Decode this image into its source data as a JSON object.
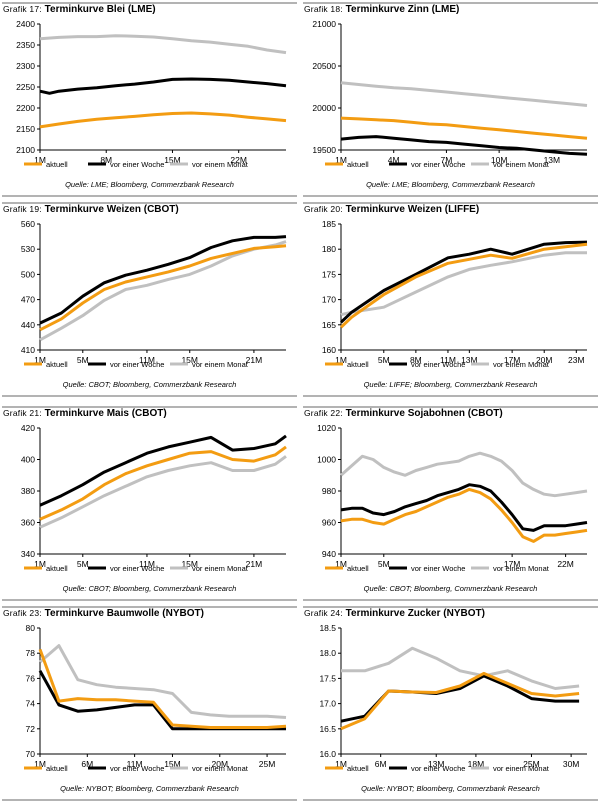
{
  "series_colors": {
    "aktuell": "#f39c12",
    "vor einer Woche": "#000000",
    "vor einem Monat": "#c0c0c0"
  },
  "legend": [
    "aktuell",
    "vor einer Woche",
    "vor einem Monat"
  ],
  "chart_data": [
    {
      "id": "g17",
      "type": "line",
      "figure_label": "Grafik 17:",
      "title": "Terminkurve Blei (LME)",
      "source": "Quelle: LME; Bloomberg, Commerzbank Research",
      "ylim": [
        2100,
        2400
      ],
      "yticks": [
        2100,
        2150,
        2200,
        2250,
        2300,
        2350,
        2400
      ],
      "ticklabels": [
        "1M",
        "8M",
        "15M",
        "22M"
      ],
      "tick_positions": [
        1,
        8,
        15,
        22
      ],
      "xlim": [
        1,
        27
      ],
      "series": [
        {
          "name": "aktuell",
          "x": [
            1,
            3,
            5,
            7,
            9,
            11,
            13,
            15,
            17,
            19,
            21,
            23,
            25,
            27
          ],
          "values": [
            2155,
            2162,
            2168,
            2173,
            2177,
            2180,
            2184,
            2187,
            2188,
            2186,
            2183,
            2178,
            2174,
            2170
          ]
        },
        {
          "name": "vor einer Woche",
          "x": [
            1,
            2,
            3,
            5,
            7,
            9,
            11,
            13,
            15,
            17,
            19,
            21,
            23,
            25,
            27
          ],
          "values": [
            2240,
            2235,
            2240,
            2245,
            2248,
            2253,
            2257,
            2262,
            2268,
            2269,
            2268,
            2266,
            2262,
            2258,
            2253
          ]
        },
        {
          "name": "vor einem Monat",
          "x": [
            1,
            3,
            5,
            7,
            9,
            11,
            13,
            15,
            17,
            19,
            21,
            23,
            25,
            27
          ],
          "values": [
            2365,
            2368,
            2370,
            2370,
            2372,
            2371,
            2369,
            2365,
            2360,
            2357,
            2352,
            2347,
            2338,
            2332
          ]
        }
      ]
    },
    {
      "id": "g18",
      "type": "line",
      "figure_label": "Grafik 18:",
      "title": "Terminkurve Zinn (LME)",
      "source": "Quelle: LME; Bloomberg, Commerzbank Research",
      "ylim": [
        19500,
        21000
      ],
      "yticks": [
        19500,
        20000,
        20500,
        21000
      ],
      "ticklabels": [
        "1M",
        "4M",
        "7M",
        "10M",
        "13M"
      ],
      "tick_positions": [
        1,
        4,
        7,
        10,
        13
      ],
      "xlim": [
        1,
        15
      ],
      "series": [
        {
          "name": "aktuell",
          "x": [
            1,
            2,
            3,
            4,
            5,
            6,
            7,
            8,
            9,
            10,
            11,
            12,
            13,
            14,
            15
          ],
          "values": [
            19880,
            19870,
            19860,
            19850,
            19830,
            19810,
            19800,
            19780,
            19760,
            19740,
            19720,
            19700,
            19680,
            19660,
            19640
          ]
        },
        {
          "name": "vor einer Woche",
          "x": [
            1,
            2,
            3,
            4,
            5,
            6,
            7,
            8,
            9,
            10,
            11,
            12,
            13,
            14,
            15
          ],
          "values": [
            19630,
            19650,
            19660,
            19640,
            19620,
            19600,
            19590,
            19570,
            19550,
            19530,
            19520,
            19500,
            19480,
            19460,
            19450
          ]
        },
        {
          "name": "vor einem Monat",
          "x": [
            1,
            2,
            3,
            4,
            5,
            6,
            7,
            8,
            9,
            10,
            11,
            12,
            13,
            14,
            15
          ],
          "values": [
            20300,
            20280,
            20260,
            20240,
            20230,
            20210,
            20190,
            20170,
            20150,
            20130,
            20110,
            20090,
            20070,
            20050,
            20030
          ]
        }
      ]
    },
    {
      "id": "g19",
      "type": "line",
      "figure_label": "Grafik 19:",
      "title": "Terminkurve Weizen (CBOT)",
      "source": "Quelle: CBOT; Bloomberg, Commerzbank Research",
      "ylim": [
        410,
        560
      ],
      "yticks": [
        410,
        440,
        470,
        500,
        530,
        560
      ],
      "ticklabels": [
        "1M",
        "5M",
        "11M",
        "15M",
        "21M"
      ],
      "tick_positions": [
        1,
        5,
        11,
        15,
        21
      ],
      "xlim": [
        1,
        24
      ],
      "series": [
        {
          "name": "aktuell",
          "x": [
            1,
            3,
            5,
            7,
            9,
            11,
            13,
            15,
            17,
            19,
            21,
            23,
            24
          ],
          "values": [
            434,
            447,
            466,
            482,
            491,
            497,
            503,
            510,
            519,
            525,
            531,
            533,
            534
          ]
        },
        {
          "name": "vor einer Woche",
          "x": [
            1,
            3,
            5,
            7,
            9,
            11,
            13,
            15,
            17,
            19,
            21,
            23,
            24
          ],
          "values": [
            442,
            454,
            474,
            490,
            499,
            505,
            512,
            520,
            532,
            540,
            544,
            544,
            545
          ]
        },
        {
          "name": "vor einem Monat",
          "x": [
            1,
            3,
            5,
            7,
            9,
            11,
            13,
            15,
            17,
            19,
            21,
            23,
            24
          ],
          "values": [
            422,
            436,
            451,
            469,
            482,
            487,
            494,
            500,
            510,
            522,
            530,
            535,
            539
          ]
        }
      ]
    },
    {
      "id": "g20",
      "type": "line",
      "figure_label": "Grafik 20:",
      "title": "Terminkurve Weizen (LIFFE)",
      "source": "Quelle: LIFFE; Bloomberg, Commerzbank Research",
      "ylim": [
        160,
        185
      ],
      "yticks": [
        160,
        165,
        170,
        175,
        180,
        185
      ],
      "ticklabels": [
        "1M",
        "5M",
        "8M",
        "11M",
        "13M",
        "17M",
        "20M",
        "23M"
      ],
      "tick_positions": [
        1,
        5,
        8,
        11,
        13,
        17,
        20,
        23
      ],
      "xlim": [
        1,
        24
      ],
      "series": [
        {
          "name": "aktuell",
          "x": [
            1,
            2,
            5,
            8,
            11,
            13,
            15,
            17,
            20,
            22,
            24
          ],
          "values": [
            164.5,
            166.5,
            171,
            174.5,
            177.2,
            178,
            178.8,
            178.2,
            180,
            180.5,
            181
          ]
        },
        {
          "name": "vor einer Woche",
          "x": [
            1,
            2,
            5,
            8,
            11,
            13,
            15,
            17,
            20,
            22,
            24
          ],
          "values": [
            165.5,
            167.5,
            171.8,
            175,
            178.3,
            179,
            180,
            179,
            181,
            181.3,
            181.4
          ]
        },
        {
          "name": "vor einem Monat",
          "x": [
            1,
            2,
            5,
            8,
            11,
            13,
            15,
            17,
            20,
            22,
            24
          ],
          "values": [
            167,
            167.5,
            168.5,
            171.5,
            174.5,
            176,
            176.8,
            177.5,
            178.8,
            179.3,
            179.3
          ]
        }
      ]
    },
    {
      "id": "g21",
      "type": "line",
      "figure_label": "Grafik 21:",
      "title": "Terminkurve Mais (CBOT)",
      "source": "Quelle: CBOT; Bloomberg, Commerzbank Research",
      "ylim": [
        340,
        420
      ],
      "yticks": [
        340,
        360,
        380,
        400,
        420
      ],
      "ticklabels": [
        "1M",
        "5M",
        "11M",
        "15M",
        "21M"
      ],
      "tick_positions": [
        1,
        5,
        11,
        15,
        21
      ],
      "xlim": [
        1,
        24
      ],
      "series": [
        {
          "name": "aktuell",
          "x": [
            1,
            3,
            5,
            7,
            9,
            11,
            13,
            15,
            17,
            19,
            21,
            23,
            24
          ],
          "values": [
            362,
            368,
            375,
            384,
            391,
            396,
            400,
            404,
            405,
            400,
            399,
            403,
            408
          ]
        },
        {
          "name": "vor einer Woche",
          "x": [
            1,
            3,
            5,
            7,
            9,
            11,
            13,
            15,
            17,
            19,
            21,
            23,
            24
          ],
          "values": [
            371,
            377,
            384,
            392,
            398,
            404,
            408,
            411,
            414,
            406,
            407,
            410,
            415
          ]
        },
        {
          "name": "vor einem Monat",
          "x": [
            1,
            3,
            5,
            7,
            9,
            11,
            13,
            15,
            17,
            19,
            21,
            23,
            24
          ],
          "values": [
            357,
            363,
            370,
            377,
            383,
            389,
            393,
            396,
            398,
            393,
            393,
            397,
            402
          ]
        }
      ]
    },
    {
      "id": "g22",
      "type": "line",
      "figure_label": "Grafik 22:",
      "title": "Terminkurve Sojabohnen (CBOT)",
      "source": "Quelle: CBOT; Bloomberg, Commerzbank Research",
      "ylim": [
        940,
        1020
      ],
      "yticks": [
        940,
        960,
        980,
        1000,
        1020
      ],
      "ticklabels": [
        "1M",
        "5M",
        "17M",
        "22M"
      ],
      "tick_positions": [
        1,
        5,
        17,
        22
      ],
      "xlim": [
        1,
        24
      ],
      "series": [
        {
          "name": "aktuell",
          "x": [
            1,
            2,
            3,
            4,
            5,
            6,
            7,
            8,
            9,
            10,
            11,
            12,
            13,
            14,
            15,
            16,
            17,
            18,
            19,
            20,
            21,
            22,
            23,
            24
          ],
          "values": [
            961,
            962,
            962,
            960,
            959,
            962,
            965,
            967,
            970,
            973,
            976,
            978,
            981,
            979,
            975,
            968,
            960,
            951,
            948,
            952,
            952,
            953,
            954,
            955
          ]
        },
        {
          "name": "vor einer Woche",
          "x": [
            1,
            2,
            3,
            4,
            5,
            6,
            7,
            8,
            9,
            10,
            11,
            12,
            13,
            14,
            15,
            16,
            17,
            18,
            19,
            20,
            21,
            22,
            23,
            24
          ],
          "values": [
            968,
            969,
            969,
            966,
            965,
            967,
            970,
            972,
            974,
            977,
            979,
            981,
            984,
            983,
            980,
            973,
            965,
            956,
            955,
            958,
            958,
            958,
            959,
            960
          ]
        },
        {
          "name": "vor einem Monat",
          "x": [
            1,
            2,
            3,
            4,
            5,
            6,
            7,
            8,
            9,
            10,
            11,
            12,
            13,
            14,
            15,
            16,
            17,
            18,
            19,
            20,
            21,
            22,
            23,
            24
          ],
          "values": [
            990,
            996,
            1002,
            1000,
            995,
            992,
            990,
            993,
            995,
            997,
            998,
            999,
            1002,
            1004,
            1002,
            999,
            993,
            985,
            981,
            978,
            977,
            978,
            979,
            980
          ]
        }
      ]
    },
    {
      "id": "g23",
      "type": "line",
      "figure_label": "Grafik 23:",
      "title": "Terminkurve Baumwolle (NYBOT)",
      "source": "Quelle: NYBOT; Bloomberg, Commerzbank Research",
      "ylim": [
        70,
        80
      ],
      "yticks": [
        70,
        72,
        74,
        76,
        78,
        80
      ],
      "ticklabels": [
        "1M",
        "6M",
        "11M",
        "15M",
        "20M",
        "25M"
      ],
      "tick_positions": [
        1,
        6,
        11,
        15,
        20,
        25
      ],
      "xlim": [
        1,
        27
      ],
      "series": [
        {
          "name": "aktuell",
          "x": [
            1,
            3,
            5,
            7,
            9,
            11,
            13,
            15,
            17,
            19,
            21,
            23,
            25,
            27
          ],
          "values": [
            78.3,
            74.2,
            74.4,
            74.3,
            74.3,
            74.2,
            74.1,
            72.3,
            72.2,
            72.1,
            72.1,
            72.1,
            72.1,
            72.2
          ]
        },
        {
          "name": "vor einer Woche",
          "x": [
            1,
            3,
            5,
            7,
            9,
            11,
            13,
            15,
            17,
            19,
            21,
            23,
            25,
            27
          ],
          "values": [
            76.6,
            73.9,
            73.4,
            73.5,
            73.7,
            73.9,
            73.9,
            72.0,
            72.0,
            72.0,
            72.0,
            72.0,
            72.0,
            72.0
          ]
        },
        {
          "name": "vor einem Monat",
          "x": [
            1,
            3,
            5,
            7,
            9,
            11,
            13,
            15,
            17,
            19,
            21,
            23,
            25,
            27
          ],
          "values": [
            77.3,
            78.6,
            75.9,
            75.5,
            75.3,
            75.2,
            75.1,
            74.8,
            73.3,
            73.1,
            73.0,
            73.0,
            73.0,
            72.9
          ]
        }
      ]
    },
    {
      "id": "g24",
      "type": "line",
      "figure_label": "Grafik 24:",
      "title": "Terminkurve Zucker (NYBOT)",
      "source": "Quelle: NYBOT; Bloomberg, Commerzbank Research",
      "ylim": [
        16.0,
        18.5
      ],
      "yticks": [
        16.0,
        16.5,
        17.0,
        17.5,
        18.0,
        18.5
      ],
      "ticklabels": [
        "1M",
        "6M",
        "13M",
        "18M",
        "25M",
        "30M"
      ],
      "tick_positions": [
        1,
        6,
        13,
        18,
        25,
        30
      ],
      "xlim": [
        1,
        32
      ],
      "series": [
        {
          "name": "aktuell",
          "x": [
            1,
            4,
            7,
            10,
            13,
            16,
            19,
            22,
            25,
            28,
            31
          ],
          "values": [
            16.5,
            16.7,
            17.25,
            17.23,
            17.22,
            17.35,
            17.6,
            17.4,
            17.2,
            17.15,
            17.2
          ]
        },
        {
          "name": "vor einer Woche",
          "x": [
            1,
            4,
            7,
            10,
            13,
            16,
            19,
            22,
            25,
            28,
            31
          ],
          "values": [
            16.65,
            16.75,
            17.25,
            17.23,
            17.2,
            17.3,
            17.55,
            17.35,
            17.1,
            17.05,
            17.05
          ]
        },
        {
          "name": "vor einem Monat",
          "x": [
            1,
            4,
            7,
            10,
            13,
            16,
            19,
            22,
            25,
            28,
            31
          ],
          "values": [
            17.65,
            17.65,
            17.8,
            18.1,
            17.9,
            17.65,
            17.55,
            17.65,
            17.45,
            17.3,
            17.35
          ]
        }
      ]
    }
  ]
}
